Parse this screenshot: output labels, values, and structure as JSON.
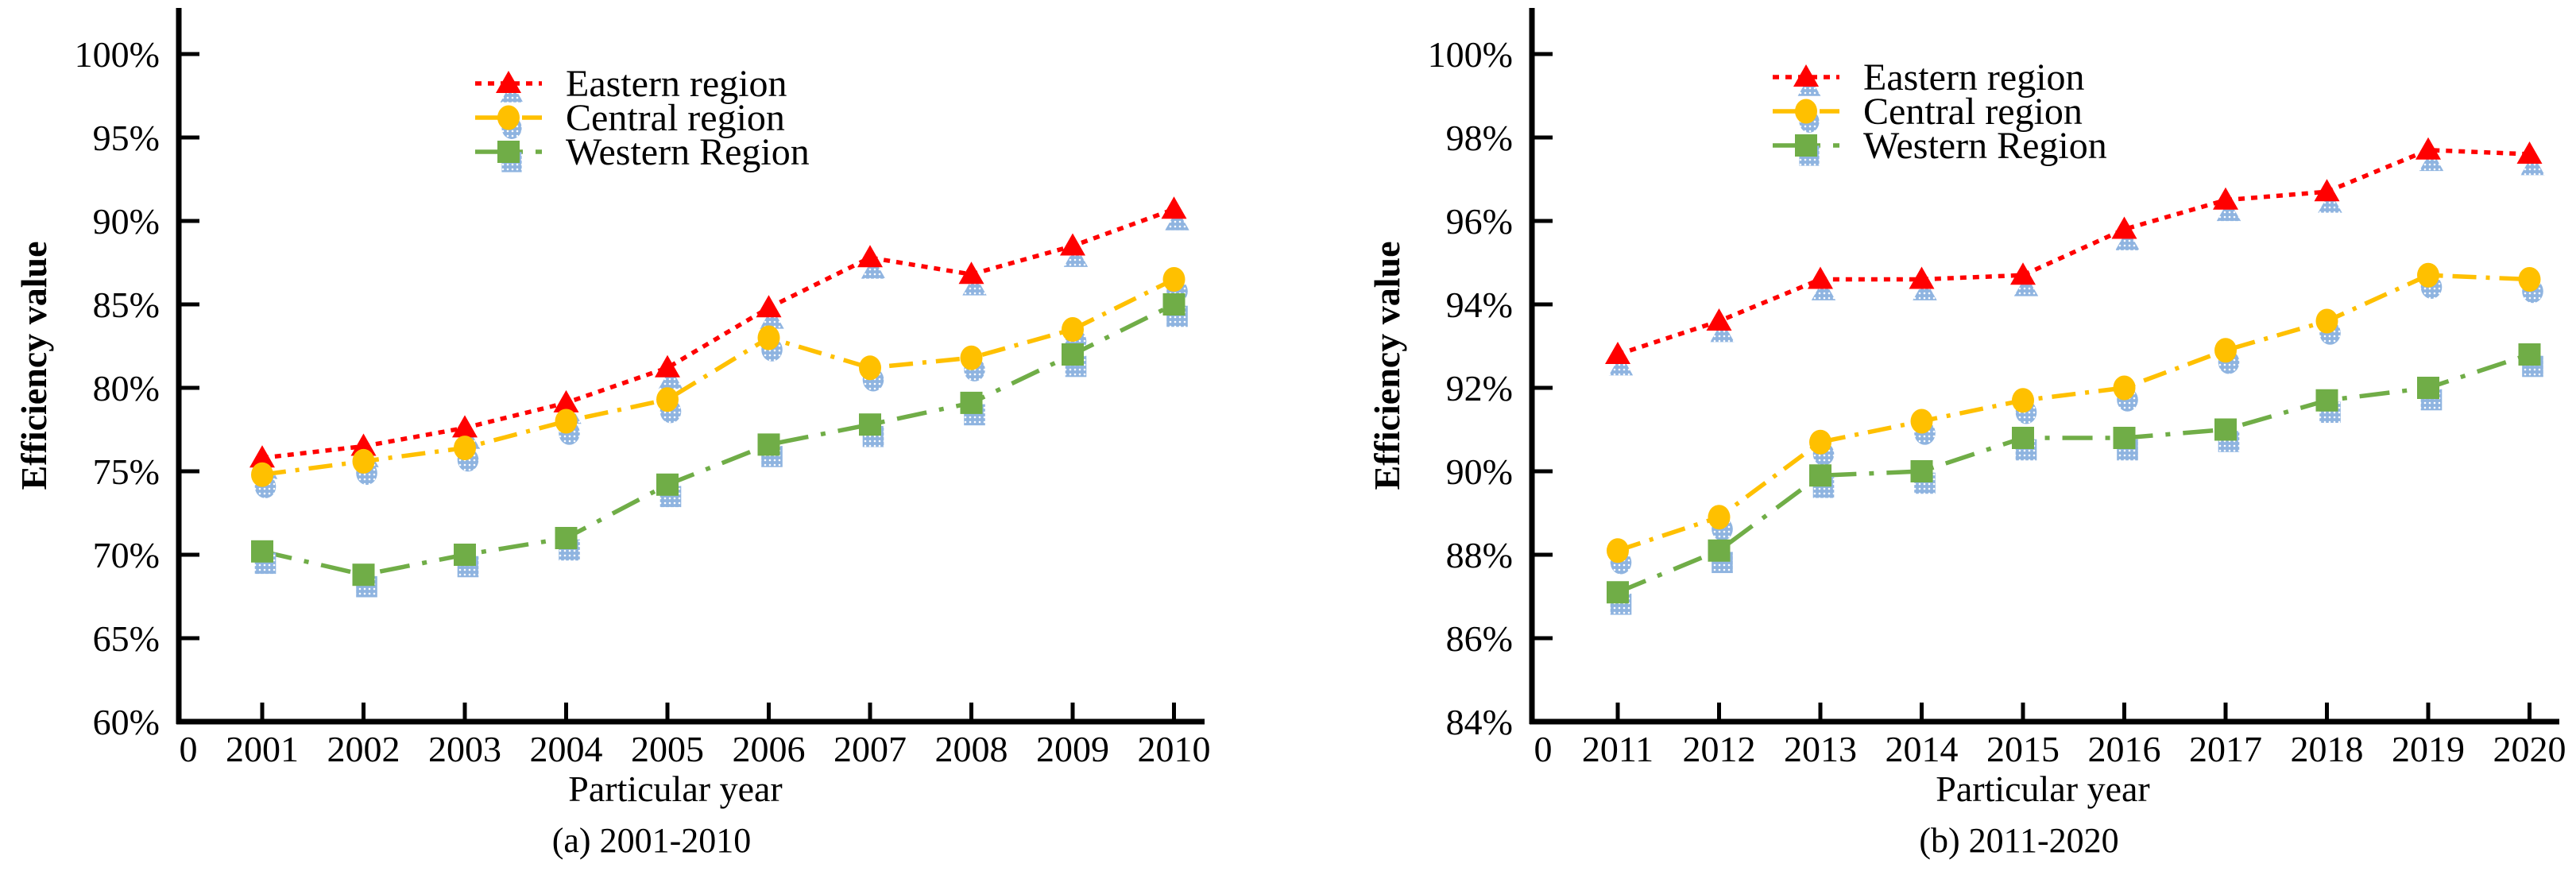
{
  "figure": {
    "ylabel": "Efficiency value",
    "xlabel": "Particular year",
    "colors": {
      "eastern": "#FF0000",
      "central": "#FFC000",
      "western": "#70AD47",
      "marker_shadow": "#8FB4E0",
      "axis": "#000000",
      "background": "#FFFFFF"
    },
    "legend": {
      "entries": [
        "Eastern region",
        "Central region",
        "Western Region"
      ],
      "position": "top-center-inside"
    }
  },
  "chart_data": [
    {
      "id": "a",
      "type": "line",
      "title": "(a) 2001-2010",
      "xlabel": "Particular year",
      "ylabel": "Efficiency value",
      "origin_label": "0",
      "categories": [
        2001,
        2002,
        2003,
        2004,
        2005,
        2006,
        2007,
        2008,
        2009,
        2010
      ],
      "xtick_labels": [
        "2001",
        "2002",
        "2003",
        "2004",
        "2005",
        "2006",
        "2007",
        "2008",
        "2009",
        "2010"
      ],
      "ylim": [
        60,
        100
      ],
      "ytick_step": 5,
      "ytick_labels": [
        "60%",
        "65%",
        "70%",
        "75%",
        "80%",
        "85%",
        "90%",
        "95%",
        "100%"
      ],
      "grid": false,
      "legend_entries": [
        "Eastern region",
        "Central region",
        "Western Region"
      ],
      "series": [
        {
          "name": "Eastern region",
          "color": "#FF0000",
          "marker": "triangle",
          "line_style": "dotted",
          "values": [
            75.8,
            76.5,
            77.6,
            79.1,
            81.2,
            84.8,
            87.8,
            86.8,
            88.5,
            90.7
          ]
        },
        {
          "name": "Central region",
          "color": "#FFC000",
          "marker": "circle",
          "line_style": "dash-dot",
          "values": [
            74.8,
            75.6,
            76.4,
            78.0,
            79.3,
            83.0,
            81.2,
            81.8,
            83.5,
            86.5
          ]
        },
        {
          "name": "Western Region",
          "color": "#70AD47",
          "marker": "square",
          "line_style": "long-dash-dot",
          "values": [
            70.2,
            68.8,
            70.0,
            71.0,
            74.2,
            76.6,
            77.8,
            79.1,
            82.0,
            85.0
          ]
        }
      ]
    },
    {
      "id": "b",
      "type": "line",
      "title": "(b) 2011-2020",
      "xlabel": "Particular year",
      "ylabel": "Efficiency value",
      "origin_label": "0",
      "categories": [
        2011,
        2012,
        2013,
        2014,
        2015,
        2016,
        2017,
        2018,
        2019,
        2020
      ],
      "xtick_labels": [
        "2011",
        "2012",
        "2013",
        "2014",
        "2015",
        "2016",
        "2017",
        "2018",
        "2019",
        "2020"
      ],
      "ylim": [
        84,
        100
      ],
      "ytick_step": 2,
      "ytick_labels": [
        "84%",
        "86%",
        "88%",
        "90%",
        "92%",
        "94%",
        "96%",
        "98%",
        "100%"
      ],
      "grid": false,
      "legend_entries": [
        "Eastern region",
        "Central region",
        "Western Region"
      ],
      "series": [
        {
          "name": "Eastern region",
          "color": "#FF0000",
          "marker": "triangle",
          "line_style": "dotted",
          "values": [
            92.8,
            93.6,
            94.6,
            94.6,
            94.7,
            95.8,
            96.5,
            96.7,
            97.7,
            97.6
          ]
        },
        {
          "name": "Central region",
          "color": "#FFC000",
          "marker": "circle",
          "line_style": "dash-dot",
          "values": [
            88.1,
            88.9,
            90.7,
            91.2,
            91.7,
            92.0,
            92.9,
            93.6,
            94.7,
            94.6
          ]
        },
        {
          "name": "Western Region",
          "color": "#70AD47",
          "marker": "square",
          "line_style": "long-dash-dot",
          "values": [
            87.1,
            88.1,
            89.9,
            90.0,
            90.8,
            90.8,
            91.0,
            91.7,
            92.0,
            92.8
          ]
        }
      ]
    }
  ]
}
